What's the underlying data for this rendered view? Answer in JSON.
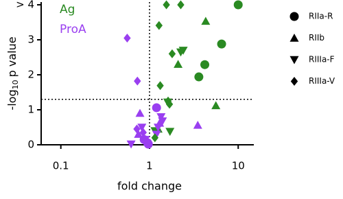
{
  "chart_data": {
    "type": "scatter",
    "xlabel": "fold change",
    "ylabel": [
      "-log",
      "10",
      "p value"
    ],
    "xscale": "log",
    "xlim": [
      0.06,
      15
    ],
    "xticks": [
      0.1,
      1,
      10
    ],
    "ylim": [
      0,
      4
    ],
    "yticks": [
      0,
      1,
      2,
      3,
      {
        "value": 4,
        "label": "> 4"
      }
    ],
    "reference_lines": {
      "x": 1,
      "y": 1.3
    },
    "groups": [
      {
        "name": "Ag",
        "color": "#2a8a22"
      },
      {
        "name": "ProA",
        "color": "#9a3ff0"
      }
    ],
    "series": [
      {
        "name": "RIIa-R",
        "marker": "circle",
        "by_group": [
          {
            "x": [
              10,
              6.5,
              4.2,
              3.6
            ],
            "values": [
              4,
              2.88,
              2.29,
              1.94
            ]
          },
          {
            "x": [
              1.2,
              0.87,
              0.95,
              0.97
            ],
            "values": [
              1.06,
              0.15,
              0.06,
              0.02
            ]
          }
        ]
      },
      {
        "name": "RIIb",
        "marker": "triangle",
        "by_group": [
          {
            "x": [
              4.3,
              2.1,
              5.6,
              1.25
            ],
            "values": [
              3.53,
              2.3,
              1.12,
              0.45
            ]
          },
          {
            "x": [
              0.78,
              3.5,
              1.3,
              0.75
            ],
            "values": [
              0.9,
              0.56,
              0.62,
              0.3
            ]
          }
        ]
      },
      {
        "name": "RIIIa-F",
        "marker": "triangle-down",
        "by_group": [
          {
            "x": [
              2.25,
              2.4,
              1.6,
              1.15,
              1.7
            ],
            "values": [
              2.65,
              2.7,
              1.22,
              0.4,
              0.38
            ]
          },
          {
            "x": [
              0.62,
              0.82,
              1.35,
              1.4,
              1.25,
              1.2,
              0.9
            ],
            "values": [
              0.02,
              0.5,
              0.8,
              0.68,
              0.5,
              0.3,
              0.15
            ]
          }
        ]
      },
      {
        "name": "RIIIa-V",
        "marker": "diamond",
        "by_group": [
          {
            "x": [
              1.55,
              2.25,
              1.28,
              1.8,
              1.32,
              1.62,
              1.68,
              1.15
            ],
            "values": [
              4,
              4,
              3.41,
              2.6,
              1.69,
              1.25,
              1.16,
              0.2
            ]
          },
          {
            "x": [
              0.56,
              0.73,
              0.85,
              0.72
            ],
            "values": [
              3.05,
              1.82,
              0.35,
              0.45
            ]
          }
        ]
      }
    ]
  }
}
